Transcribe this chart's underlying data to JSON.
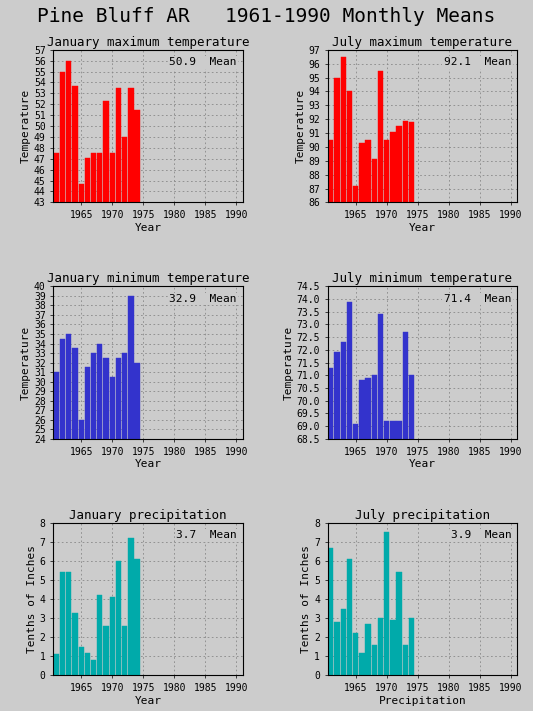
{
  "title": "Pine Bluff AR   1961-1990 Monthly Means",
  "panels": [
    {
      "title": "January maximum temperature",
      "ylabel": "Temperature",
      "xlabel": "Year",
      "mean_label": "50.9  Mean",
      "color": "red",
      "ylim": [
        43,
        57
      ],
      "yticks": [
        43,
        44,
        45,
        46,
        47,
        48,
        49,
        50,
        51,
        52,
        53,
        54,
        55,
        56,
        57
      ],
      "bar_bottom": 43,
      "years": [
        1961,
        1962,
        1963,
        1964,
        1965,
        1966,
        1967,
        1968,
        1969,
        1970,
        1971,
        1972,
        1973,
        1974
      ],
      "values": [
        47.5,
        55.0,
        56.0,
        53.7,
        44.7,
        47.1,
        47.5,
        47.5,
        52.3,
        47.5,
        53.5,
        49.0,
        53.5,
        51.5
      ]
    },
    {
      "title": "July maximum temperature",
      "ylabel": "Temperature",
      "xlabel": "Year",
      "mean_label": "92.1  Mean",
      "color": "red",
      "ylim": [
        86,
        97
      ],
      "yticks": [
        86,
        87,
        88,
        89,
        90,
        91,
        92,
        93,
        94,
        95,
        96,
        97
      ],
      "bar_bottom": 86,
      "years": [
        1961,
        1962,
        1963,
        1964,
        1965,
        1966,
        1967,
        1968,
        1969,
        1970,
        1971,
        1972,
        1973,
        1974
      ],
      "values": [
        90.5,
        95.0,
        96.5,
        94.0,
        87.2,
        90.3,
        90.5,
        89.1,
        95.5,
        90.5,
        91.1,
        91.5,
        91.9,
        91.8
      ]
    },
    {
      "title": "January minimum temperature",
      "ylabel": "Temperature",
      "xlabel": "Year",
      "mean_label": "32.9  Mean",
      "color": "#3333cc",
      "ylim": [
        24,
        40
      ],
      "yticks": [
        24,
        25,
        26,
        27,
        28,
        29,
        30,
        31,
        32,
        33,
        34,
        35,
        36,
        37,
        38,
        39,
        40
      ],
      "bar_bottom": 24,
      "years": [
        1961,
        1962,
        1963,
        1964,
        1965,
        1966,
        1967,
        1968,
        1969,
        1970,
        1971,
        1972,
        1973,
        1974
      ],
      "values": [
        31.0,
        34.5,
        35.0,
        33.5,
        26.0,
        31.5,
        33.0,
        34.0,
        32.5,
        30.5,
        32.5,
        33.0,
        39.0,
        32.0
      ]
    },
    {
      "title": "July minimum temperature",
      "ylabel": "Temperature",
      "xlabel": "Year",
      "mean_label": "71.4  Mean",
      "color": "#3333cc",
      "ylim": [
        68.5,
        74.5
      ],
      "yticks": [
        68.5,
        69.0,
        69.5,
        70.0,
        70.5,
        71.0,
        71.5,
        72.0,
        72.5,
        73.0,
        73.5,
        74.0,
        74.5
      ],
      "bar_bottom": 68.5,
      "years": [
        1961,
        1962,
        1963,
        1964,
        1965,
        1966,
        1967,
        1968,
        1969,
        1970,
        1971,
        1972,
        1973,
        1974
      ],
      "values": [
        71.3,
        71.9,
        72.3,
        73.9,
        69.1,
        70.8,
        70.9,
        71.0,
        73.4,
        69.2,
        69.2,
        69.2,
        72.7,
        71.0
      ]
    },
    {
      "title": "January precipitation",
      "ylabel": "Tenths of Inches",
      "xlabel": "Year",
      "mean_label": "3.7  Mean",
      "color": "#00aaaa",
      "ylim": [
        0,
        8
      ],
      "yticks": [
        0,
        1,
        2,
        3,
        4,
        5,
        6,
        7,
        8
      ],
      "bar_bottom": 0,
      "years": [
        1961,
        1962,
        1963,
        1964,
        1965,
        1966,
        1967,
        1968,
        1969,
        1970,
        1971,
        1972,
        1973,
        1974
      ],
      "values": [
        1.1,
        5.4,
        5.4,
        3.3,
        1.5,
        1.2,
        0.8,
        4.2,
        2.6,
        4.1,
        6.0,
        2.6,
        7.2,
        6.1
      ]
    },
    {
      "title": "July precipitation",
      "ylabel": "Tenths of Inches",
      "xlabel": "Precipitation",
      "mean_label": "3.9  Mean",
      "color": "#00aaaa",
      "ylim": [
        0,
        8
      ],
      "yticks": [
        0,
        1,
        2,
        3,
        4,
        5,
        6,
        7,
        8
      ],
      "bar_bottom": 0,
      "years": [
        1961,
        1962,
        1963,
        1964,
        1965,
        1966,
        1967,
        1968,
        1969,
        1970,
        1971,
        1972,
        1973,
        1974
      ],
      "values": [
        6.7,
        2.8,
        3.5,
        6.1,
        2.2,
        1.2,
        2.7,
        1.6,
        3.0,
        7.5,
        2.9,
        5.4,
        1.6,
        3.0
      ]
    }
  ],
  "xticks": [
    1965,
    1970,
    1975,
    1980,
    1985,
    1990
  ],
  "xlim": [
    1960.5,
    1991
  ],
  "bg_color": "#cccccc",
  "grid_color": "#888888",
  "bar_width": 0.85,
  "title_fontsize": 14,
  "subtitle_fontsize": 9,
  "tick_fontsize": 7,
  "label_fontsize": 8,
  "mean_fontsize": 8
}
